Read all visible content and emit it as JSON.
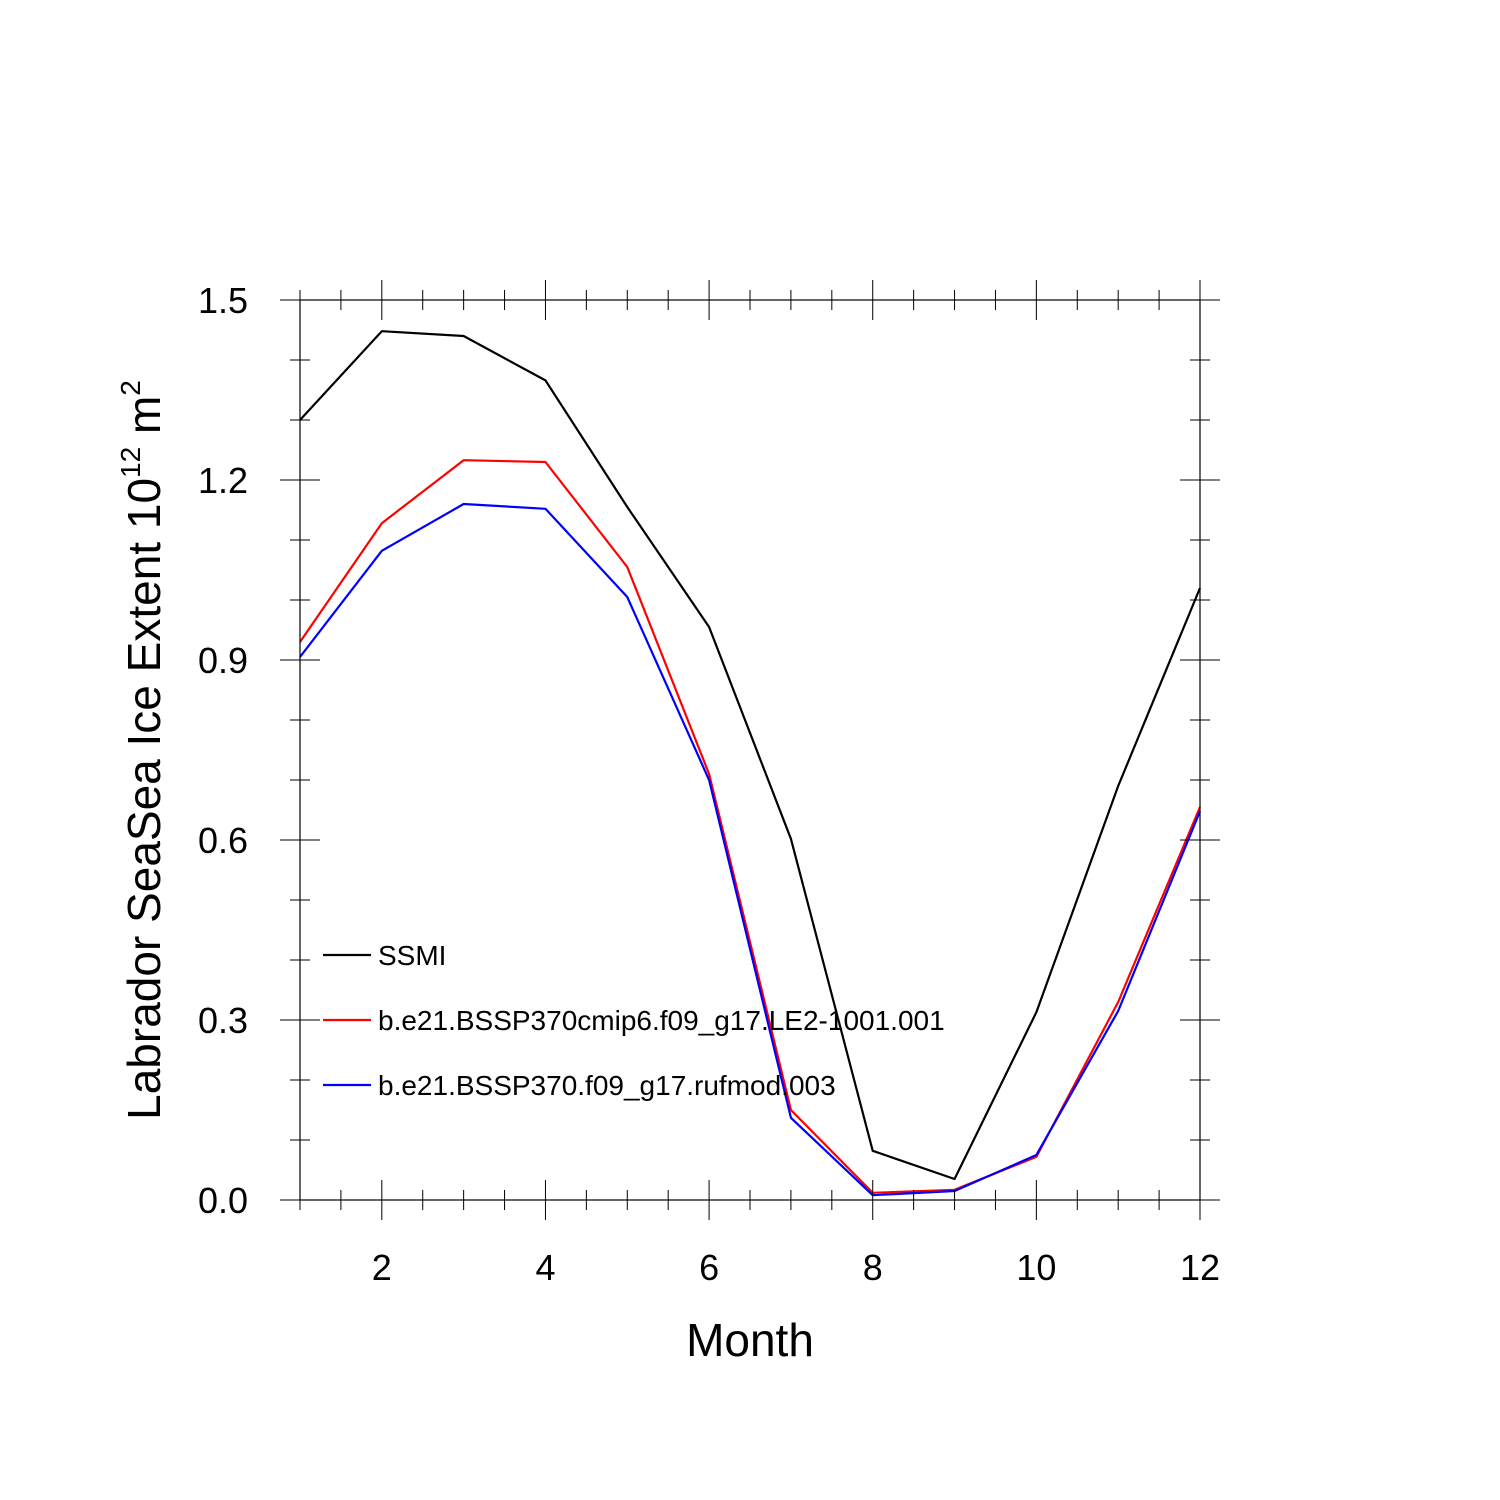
{
  "chart_data": {
    "type": "line",
    "xlabel": "Month",
    "ylabel_main": "Labrador SeaSea Ice Extent 10",
    "ylabel_sup": "12",
    "ylabel_unit": " m",
    "ylabel_unit_sup": "2",
    "xlim": [
      1,
      12
    ],
    "ylim": [
      0,
      1.5
    ],
    "xticks": [
      2,
      4,
      6,
      8,
      10,
      12
    ],
    "xtick_labels": [
      "2",
      "4",
      "6",
      "8",
      "10",
      "12"
    ],
    "yticks": [
      0,
      0.3,
      0.6,
      0.9,
      1.2,
      1.5
    ],
    "ytick_labels": [
      "0.0",
      "0.3",
      "0.6",
      "0.9",
      "1.2",
      "1.5"
    ],
    "grid": false,
    "legend_position": "lower-left",
    "x": [
      1,
      2,
      3,
      4,
      5,
      6,
      7,
      8,
      9,
      10,
      11,
      12
    ],
    "series": [
      {
        "name": "SSMI",
        "color": "#000000",
        "values": [
          1.3,
          1.448,
          1.44,
          1.366,
          1.155,
          0.955,
          0.602,
          0.082,
          0.035,
          0.313,
          0.69,
          1.02
        ]
      },
      {
        "name": "b.e21.BSSP370cmip6.f09_g17.LE2-1001.001",
        "color": "#ff0000",
        "values": [
          0.93,
          1.128,
          1.233,
          1.23,
          1.055,
          0.71,
          0.15,
          0.012,
          0.017,
          0.072,
          0.33,
          0.655
        ]
      },
      {
        "name": "b.e21.BSSP370.f09_g17.rufmod.003",
        "color": "#0000ff",
        "values": [
          0.905,
          1.082,
          1.16,
          1.152,
          1.005,
          0.7,
          0.137,
          0.008,
          0.015,
          0.075,
          0.315,
          0.648
        ]
      }
    ]
  }
}
